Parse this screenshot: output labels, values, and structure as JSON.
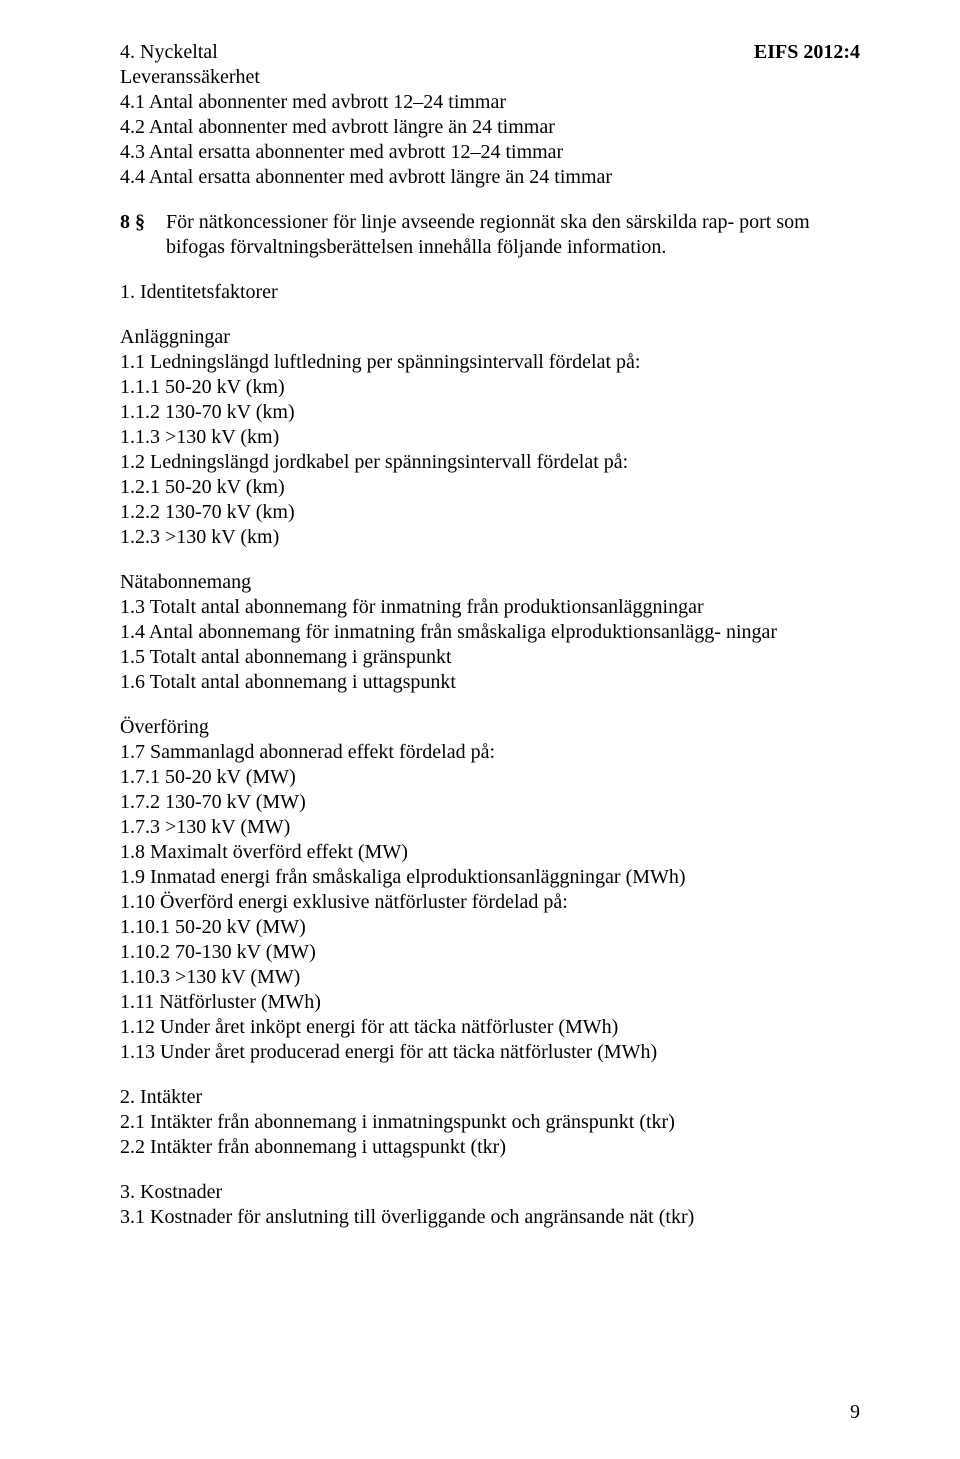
{
  "header": {
    "left": "4.  Nyckeltal",
    "right": "EIFS 2012:4"
  },
  "block1": {
    "l1": "Leveranssäkerhet",
    "l2": "4.1  Antal abonnenter med avbrott 12–24 timmar",
    "l3": "4.2  Antal abonnenter med avbrott längre än 24 timmar",
    "l4": "4.3  Antal ersatta abonnenter med avbrott 12–24 timmar",
    "l5": "4.4  Antal ersatta abonnenter med avbrott längre än 24 timmar"
  },
  "section8": {
    "num": "8 §",
    "text": "För nätkoncessioner för linje avseende regionnät ska den särskilda rap- port som bifogas förvaltningsberättelsen innehålla följande information."
  },
  "ident": {
    "title": "1. Identitetsfaktorer"
  },
  "anl": {
    "h": "Anläggningar",
    "l1": "1.1  Ledningslängd luftledning per spänningsintervall fördelat på:",
    "l2": "1.1.1  50-20 kV (km)",
    "l3": "1.1.2  130-70 kV (km)",
    "l4": "1.1.3  >130 kV (km)",
    "l5": "1.2  Ledningslängd jordkabel per spänningsintervall fördelat på:",
    "l6": "1.2.1  50-20 kV (km)",
    "l7": "1.2.2  130-70 kV (km)",
    "l8": "1.2.3  >130 kV (km)"
  },
  "nat": {
    "h": "Nätabonnemang",
    "l1": "1.3  Totalt antal abonnemang för inmatning från produktionsanläggningar",
    "l2": "1.4  Antal abonnemang för inmatning från småskaliga elproduktionsanlägg- ningar",
    "l3": "1.5  Totalt antal abonnemang i gränspunkt",
    "l4": "1.6  Totalt antal abonnemang i uttagspunkt"
  },
  "ovf": {
    "h": "Överföring",
    "l1": "1.7  Sammanlagd abonnerad effekt fördelad på:",
    "l2": "1.7.1  50-20 kV (MW)",
    "l3": "1.7.2  130-70 kV (MW)",
    "l4": "1.7.3  >130 kV (MW)",
    "l5": "1.8  Maximalt överförd effekt (MW)",
    "l6": "1.9  Inmatad energi från småskaliga elproduktionsanläggningar (MWh)",
    "l7": "1.10  Överförd energi exklusive nätförluster fördelad på:",
    "l8": "1.10.1  50-20 kV (MW)",
    "l9": "1.10.2  70-130 kV (MW)",
    "l10": "1.10.3  >130 kV (MW)",
    "l11": "1.11  Nätförluster (MWh)",
    "l12": "1.12  Under året inköpt energi för att täcka nätförluster (MWh)",
    "l13": "1.13  Under året producerad energi för att täcka nätförluster (MWh)"
  },
  "int": {
    "h": "2.  Intäkter",
    "l1": "2.1  Intäkter från abonnemang i inmatningspunkt och gränspunkt (tkr)",
    "l2": "2.2  Intäkter från abonnemang i uttagspunkt (tkr)"
  },
  "kost": {
    "h": "3.  Kostnader",
    "l1": "3.1  Kostnader för anslutning till överliggande och angränsande nät (tkr)"
  },
  "pageNumber": "9"
}
